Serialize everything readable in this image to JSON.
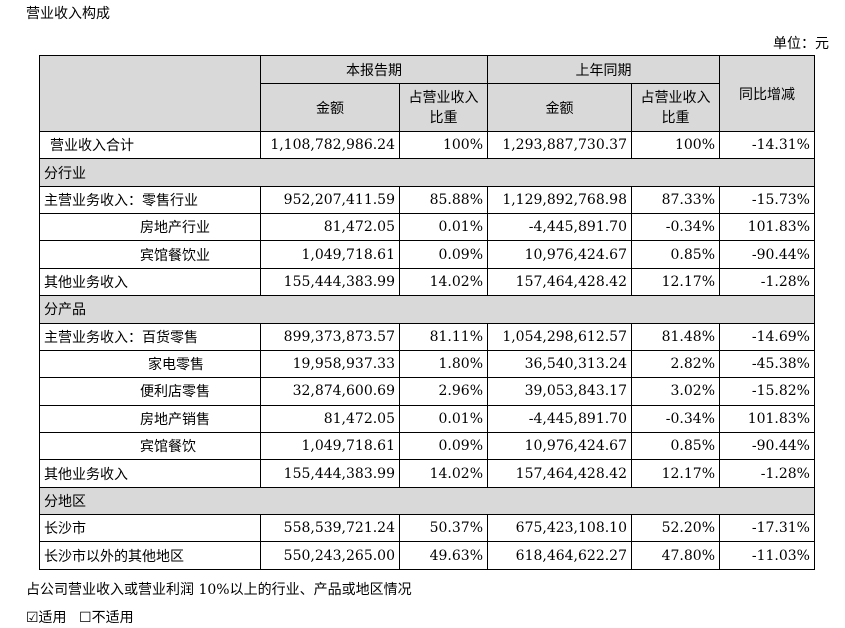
{
  "title": "营业收入构成",
  "unit": "单位：元",
  "headers": {
    "current_period": "本报告期",
    "prior_period": "上年同期",
    "amount": "金额",
    "share_line1": "占营业收入",
    "share_line2": "比重",
    "yoy": "同比增减"
  },
  "total": {
    "label": "营业收入合计",
    "cur_amount": "1,108,782,986.24",
    "cur_share": "100%",
    "prev_amount": "1,293,887,730.37",
    "prev_share": "100%",
    "yoy": "-14.31%"
  },
  "sections": {
    "industry": "分行业",
    "product": "分产品",
    "region": "分地区"
  },
  "industry_rows": [
    {
      "label": "主营业务收入：零售行业",
      "cur_amount": "952,207,411.59",
      "cur_share": "85.88%",
      "prev_amount": "1,129,892,768.98",
      "prev_share": "87.33%",
      "yoy": "-15.73%"
    },
    {
      "label": "房地产行业",
      "cur_amount": "81,472.05",
      "cur_share": "0.01%",
      "prev_amount": "-4,445,891.70",
      "prev_share": "-0.34%",
      "yoy": "101.83%"
    },
    {
      "label": "宾馆餐饮业",
      "cur_amount": "1,049,718.61",
      "cur_share": "0.09%",
      "prev_amount": "10,976,424.67",
      "prev_share": "0.85%",
      "yoy": "-90.44%"
    },
    {
      "label": "其他业务收入",
      "cur_amount": "155,444,383.99",
      "cur_share": "14.02%",
      "prev_amount": "157,464,428.42",
      "prev_share": "12.17%",
      "yoy": "-1.28%"
    }
  ],
  "product_rows": [
    {
      "label": "主营业务收入：百货零售",
      "cur_amount": "899,373,873.57",
      "cur_share": "81.11%",
      "prev_amount": "1,054,298,612.57",
      "prev_share": "81.48%",
      "yoy": "-14.69%"
    },
    {
      "label": "家电零售",
      "cur_amount": "19,958,937.33",
      "cur_share": "1.80%",
      "prev_amount": "36,540,313.24",
      "prev_share": "2.82%",
      "yoy": "-45.38%"
    },
    {
      "label": "便利店零售",
      "cur_amount": "32,874,600.69",
      "cur_share": "2.96%",
      "prev_amount": "39,053,843.17",
      "prev_share": "3.02%",
      "yoy": "-15.82%"
    },
    {
      "label": "房地产销售",
      "cur_amount": "81,472.05",
      "cur_share": "0.01%",
      "prev_amount": "-4,445,891.70",
      "prev_share": "-0.34%",
      "yoy": "101.83%"
    },
    {
      "label": "宾馆餐饮",
      "cur_amount": "1,049,718.61",
      "cur_share": "0.09%",
      "prev_amount": "10,976,424.67",
      "prev_share": "0.85%",
      "yoy": "-90.44%"
    },
    {
      "label": "其他业务收入",
      "cur_amount": "155,444,383.99",
      "cur_share": "14.02%",
      "prev_amount": "157,464,428.42",
      "prev_share": "12.17%",
      "yoy": "-1.28%"
    }
  ],
  "region_rows": [
    {
      "label": "长沙市",
      "cur_amount": "558,539,721.24",
      "cur_share": "50.37%",
      "prev_amount": "675,423,108.10",
      "prev_share": "52.20%",
      "yoy": "-17.31%"
    },
    {
      "label": "长沙市以外的其他地区",
      "cur_amount": "550,243,265.00",
      "cur_share": "49.63%",
      "prev_amount": "618,464,622.27",
      "prev_share": "47.80%",
      "yoy": "-11.03%"
    }
  ],
  "note": "占公司营业收入或营业利润 10%以上的行业、产品或地区情况",
  "options": {
    "applicable": "☑适用",
    "not_applicable": "☐不适用"
  }
}
